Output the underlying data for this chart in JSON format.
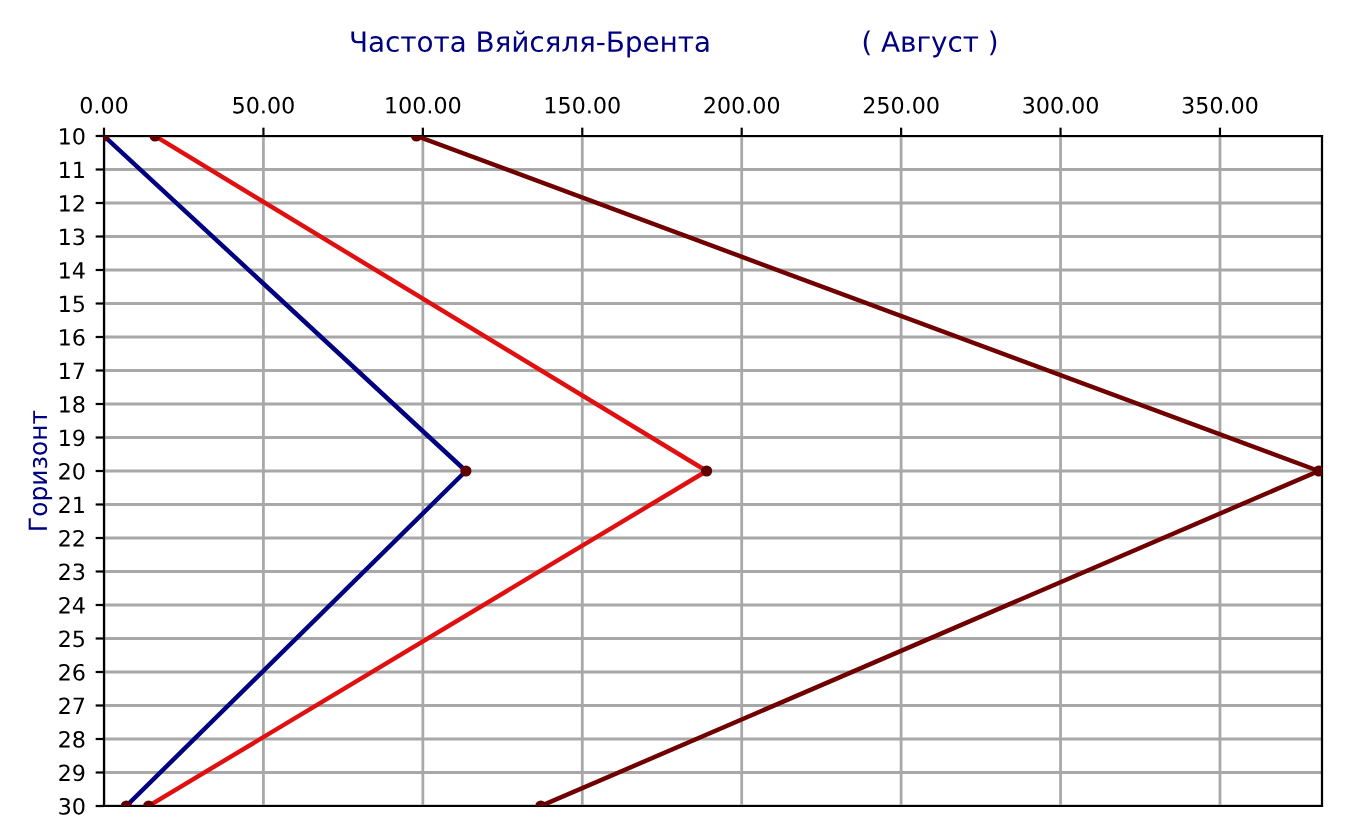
{
  "chart_data": {
    "type": "line",
    "title": "Частота Вяйсяля-Брента",
    "subtitle": "( Август )",
    "ylabel": "Горизонт",
    "xlim": [
      0,
      382
    ],
    "xticks": [
      {
        "value": 0,
        "label": "0.00"
      },
      {
        "value": 50,
        "label": "50.00"
      },
      {
        "value": 100,
        "label": "100.00"
      },
      {
        "value": 150,
        "label": "150.00"
      },
      {
        "value": 200,
        "label": "200.00"
      },
      {
        "value": 250,
        "label": "250.00"
      },
      {
        "value": 300,
        "label": "300.00"
      },
      {
        "value": 350,
        "label": "350.00"
      }
    ],
    "ylim": [
      30,
      10
    ],
    "yticks": [
      10,
      11,
      12,
      13,
      14,
      15,
      16,
      17,
      18,
      19,
      20,
      21,
      22,
      23,
      24,
      25,
      26,
      27,
      28,
      29,
      30
    ],
    "grid": true,
    "marker": "circle",
    "line_style": "solid",
    "series": [
      {
        "color": "#000080",
        "x": [
          0,
          113.5,
          7
        ],
        "values": [
          10,
          20,
          30
        ]
      },
      {
        "color": "#e01010",
        "x": [
          16,
          189,
          14
        ],
        "values": [
          10,
          20,
          30
        ]
      },
      {
        "color": "#700000",
        "x": [
          98,
          381,
          137
        ],
        "values": [
          10,
          20,
          30
        ]
      }
    ]
  }
}
